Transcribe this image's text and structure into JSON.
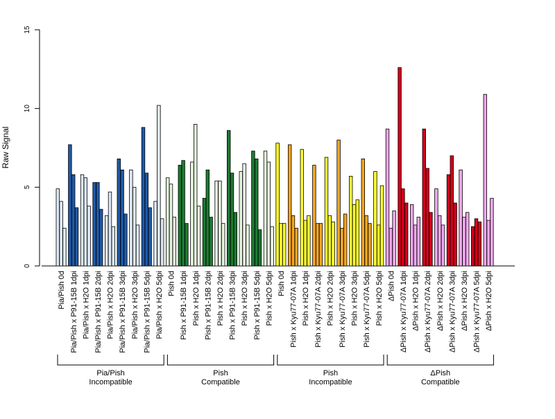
{
  "chart_data": {
    "type": "bar",
    "ylabel": "Raw Signal",
    "ylim": [
      0,
      15
    ],
    "yticks": [
      0,
      5,
      10,
      15
    ],
    "grid": false,
    "legend": "none",
    "colors": {
      "pia_light": "#dde8f5",
      "pia_dark": "#1f5aa8",
      "pish_light": "#e6f4e0",
      "pish_dark": "#1e7a32",
      "kyu_yellow": "#ffff33",
      "kyu_orange": "#f5a623",
      "dpish_pink": "#f0a8ee",
      "dpish_red": "#d0021b"
    },
    "categories": [
      {
        "label": "Pia/Pish 0d",
        "color": "pia_light",
        "values": [
          4.9,
          4.1,
          2.4
        ]
      },
      {
        "label": "Pia/Pish x P91-15B 1dpi",
        "color": "pia_dark",
        "values": [
          7.7,
          5.8,
          3.7
        ]
      },
      {
        "label": "Pia/Pish x H2O 1dpi",
        "color": "pia_light",
        "values": [
          5.8,
          5.6,
          3.8
        ]
      },
      {
        "label": "Pia/Pish x P91-15B 2dpi",
        "color": "pia_dark",
        "values": [
          5.3,
          5.3,
          3.6
        ]
      },
      {
        "label": "Pia/Pish x H2O 2dpi",
        "color": "pia_light",
        "values": [
          3.2,
          4.7,
          2.5
        ]
      },
      {
        "label": "Pia/Pish x P91-15B 3dpi",
        "color": "pia_dark",
        "values": [
          6.8,
          6.1,
          3.3
        ]
      },
      {
        "label": "Pia/Pish x H2O 3dpi",
        "color": "pia_light",
        "values": [
          6.1,
          5.0,
          2.6
        ]
      },
      {
        "label": "Pia/Pish x P91-15B 5dpi",
        "color": "pia_dark",
        "values": [
          8.8,
          5.9,
          3.7
        ]
      },
      {
        "label": "Pia/Pish x H2O 5dpi",
        "color": "pia_light",
        "values": [
          4.1,
          10.2,
          3.0
        ]
      },
      {
        "label": "Pish 0d",
        "color": "pish_light",
        "values": [
          5.6,
          5.2,
          3.1
        ]
      },
      {
        "label": "Pish x P91-15B 1dpi",
        "color": "pish_dark",
        "values": [
          6.4,
          6.7,
          2.7
        ]
      },
      {
        "label": "Pish x H2O 1dpi",
        "color": "pish_light",
        "values": [
          6.6,
          9.0,
          3.8
        ]
      },
      {
        "label": "Pish x P91-15B 2dpi",
        "color": "pish_dark",
        "values": [
          4.3,
          6.1,
          3.1
        ]
      },
      {
        "label": "Pish x H2O 2dpi",
        "color": "pish_light",
        "values": [
          5.4,
          5.4,
          2.7
        ]
      },
      {
        "label": "Pish x P91-15B 3dpi",
        "color": "pish_dark",
        "values": [
          8.6,
          5.9,
          3.4
        ]
      },
      {
        "label": "Pish x H2O 3dpi",
        "color": "pish_light",
        "values": [
          6.0,
          6.5,
          2.6
        ]
      },
      {
        "label": "Pish x P91-15B 5dpi",
        "color": "pish_dark",
        "values": [
          7.3,
          6.8,
          2.3
        ]
      },
      {
        "label": "Pish x H2O 5dpi",
        "color": "pish_light",
        "values": [
          7.3,
          6.6,
          2.5
        ]
      },
      {
        "label": "Pish 0d",
        "color": "kyu_yellow",
        "values": [
          7.8,
          2.7,
          2.7
        ]
      },
      {
        "label": "Pish x Kyu77-07A 1dpi",
        "color": "kyu_orange",
        "values": [
          7.7,
          3.2,
          2.4
        ]
      },
      {
        "label": "Pish x H2O 1dpi",
        "color": "kyu_yellow",
        "values": [
          7.4,
          2.9,
          3.2
        ]
      },
      {
        "label": "Pish x Kyu77-07A 2dpi",
        "color": "kyu_orange",
        "values": [
          6.4,
          2.7,
          2.7
        ]
      },
      {
        "label": "Pish x H2O 2dpi",
        "color": "kyu_yellow",
        "values": [
          6.9,
          3.2,
          2.8
        ]
      },
      {
        "label": "Pish x Kyu77-07A 3dpi",
        "color": "kyu_orange",
        "values": [
          8.0,
          2.4,
          3.3
        ]
      },
      {
        "label": "Pish x H2O 3dpi",
        "color": "kyu_yellow",
        "values": [
          5.7,
          3.9,
          4.2
        ]
      },
      {
        "label": "Pish x Kyu77-07A 5dpi",
        "color": "kyu_orange",
        "values": [
          6.8,
          3.2,
          2.7
        ]
      },
      {
        "label": "Pish x H2O 5dpi",
        "color": "kyu_yellow",
        "values": [
          6.0,
          2.6,
          5.1
        ]
      },
      {
        "label": "ΔPish 0d",
        "color": "dpish_pink",
        "values": [
          8.7,
          2.4,
          3.5
        ]
      },
      {
        "label": "ΔPish x Kyu77-07A 1dpi",
        "color": "dpish_red",
        "values": [
          12.6,
          4.9,
          4.0
        ]
      },
      {
        "label": "ΔPish x H2O 1dpi",
        "color": "dpish_pink",
        "values": [
          3.9,
          2.6,
          3.1
        ]
      },
      {
        "label": "ΔPish x Kyu77-07A 2dpi",
        "color": "dpish_red",
        "values": [
          8.7,
          6.2,
          3.4
        ]
      },
      {
        "label": "ΔPish x H2O 2dpi",
        "color": "dpish_pink",
        "values": [
          4.9,
          3.2,
          2.6
        ]
      },
      {
        "label": "ΔPish x Kyu77-07A 3dpi",
        "color": "dpish_red",
        "values": [
          5.8,
          7.0,
          4.0
        ]
      },
      {
        "label": "ΔPish x H2O 3dpi",
        "color": "dpish_pink",
        "values": [
          6.1,
          3.1,
          3.4
        ]
      },
      {
        "label": "ΔPish x Kyu77-07A 5dpi",
        "color": "dpish_red",
        "values": [
          2.5,
          3.0,
          2.8
        ]
      },
      {
        "label": "ΔPish x H2O 5dpi",
        "color": "dpish_pink",
        "values": [
          10.9,
          2.9,
          4.3
        ]
      }
    ],
    "groups": [
      {
        "line1": "Pia/Pish",
        "line2": "Incompatible",
        "start": 0,
        "end": 8
      },
      {
        "line1": "Pish",
        "line2": "Compatible",
        "start": 9,
        "end": 17
      },
      {
        "line1": "Pish",
        "line2": "Incompatible",
        "start": 18,
        "end": 26
      },
      {
        "line1": "ΔPish",
        "line2": "Compatible",
        "start": 27,
        "end": 35
      }
    ]
  }
}
